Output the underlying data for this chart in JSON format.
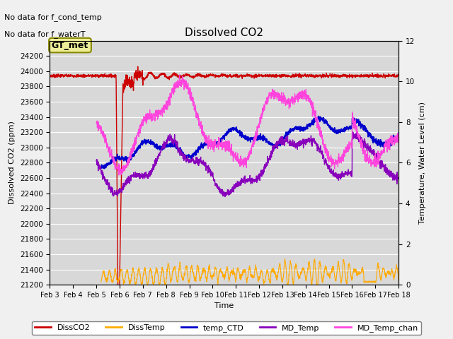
{
  "title": "Dissolved CO2",
  "ylabel_left": "Dissolved CO2 (ppm)",
  "ylabel_right": "Temperature, Water Level (cm)",
  "xlabel": "Time",
  "annotation1": "No data for f_cond_temp",
  "annotation2": "No data for f_waterT",
  "gt_met_label": "GT_met",
  "ylim_left": [
    21200,
    24400
  ],
  "ylim_right": [
    0,
    12
  ],
  "yticks_left": [
    21200,
    21400,
    21600,
    21800,
    22000,
    22200,
    22400,
    22600,
    22800,
    23000,
    23200,
    23400,
    23600,
    23800,
    24000,
    24200
  ],
  "yticks_right": [
    0,
    2,
    4,
    6,
    8,
    10,
    12
  ],
  "x_tick_labels": [
    "Feb 3",
    "Feb 4",
    "Feb 5",
    "Feb 6",
    "Feb 7",
    "Feb 8",
    "Feb 9",
    "Feb 10",
    "Feb 11",
    "Feb 12",
    "Feb 13",
    "Feb 14",
    "Feb 15",
    "Feb 16",
    "Feb 17",
    "Feb 18"
  ],
  "colors": {
    "DissCO2": "#cc0000",
    "DissTemp": "#ffaa00",
    "temp_CTD": "#0000cc",
    "MD_Temp": "#8800bb",
    "MD_Temp_chan": "#ff44dd"
  },
  "fig_facecolor": "#f0f0f0",
  "axes_facecolor": "#d8d8d8",
  "grid_color": "#ffffff"
}
